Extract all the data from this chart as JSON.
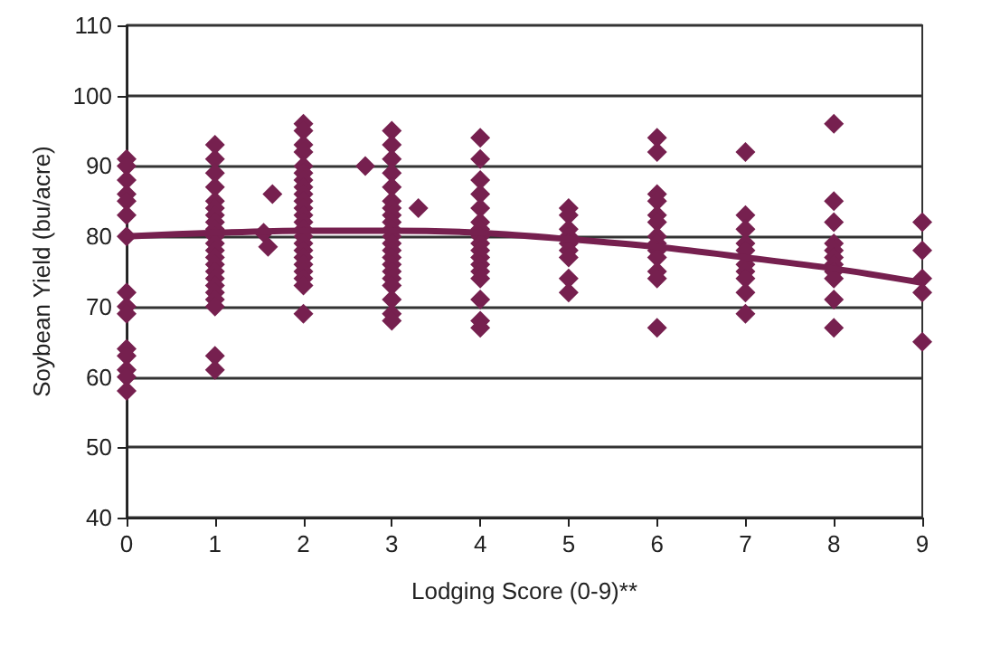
{
  "chart_data": {
    "type": "scatter",
    "xlabel": "Lodging Score (0-9)**",
    "ylabel": "Soybean Yield (bu/acre)",
    "xlim": [
      0,
      9
    ],
    "xticks": [
      0,
      1,
      2,
      3,
      4,
      5,
      6,
      7,
      8,
      9
    ],
    "ylim": [
      40,
      110
    ],
    "yticks": [
      40,
      50,
      60,
      70,
      80,
      90,
      100,
      110
    ],
    "grid": "y",
    "marker": "diamond",
    "series": [
      {
        "color": "#76204f",
        "x": [
          0,
          0,
          0,
          0,
          0,
          0,
          0,
          0,
          0,
          0,
          0,
          0,
          0,
          0,
          0,
          1,
          1,
          1,
          1,
          1,
          1,
          1,
          1,
          1,
          1,
          1,
          1,
          1,
          1,
          1,
          1,
          1,
          1,
          1,
          1,
          1,
          1,
          1.65,
          1.55,
          1.6,
          2,
          2,
          2,
          2,
          2,
          2,
          2,
          2,
          2,
          2,
          2,
          2,
          2,
          2,
          2,
          2,
          2,
          2,
          2,
          2,
          2,
          2,
          2,
          2.7,
          3,
          3,
          3,
          3,
          3,
          3,
          3,
          3,
          3,
          3,
          3,
          3,
          3,
          3,
          3,
          3,
          3,
          3,
          3,
          3,
          3,
          3.3,
          4,
          4,
          4,
          4,
          4,
          4,
          4,
          4,
          4,
          4,
          4,
          4,
          4,
          4,
          4,
          4,
          4,
          5,
          5,
          5,
          5,
          5,
          5,
          5,
          5,
          5,
          6,
          6,
          6,
          6,
          6,
          6,
          6,
          6,
          6,
          6,
          6,
          6,
          6,
          7,
          7,
          7,
          7,
          7,
          7,
          7,
          7,
          7,
          7,
          8,
          8,
          8,
          8,
          8,
          8,
          8,
          8,
          8,
          8,
          8,
          9,
          9,
          9,
          9,
          9
        ],
        "values": [
          91,
          90,
          88,
          86,
          85,
          83,
          80,
          72,
          70,
          69,
          64,
          63,
          61,
          60,
          58,
          93,
          91,
          89,
          87,
          85,
          84,
          83,
          82,
          81,
          80,
          79,
          78,
          77,
          76,
          75,
          74,
          73,
          72,
          71,
          70,
          63,
          61,
          86,
          80.5,
          78.5,
          96,
          95,
          93,
          92,
          90,
          89,
          88,
          87,
          86,
          85,
          84,
          83,
          82,
          81,
          80,
          79,
          78,
          77,
          76,
          75,
          74,
          73,
          69,
          90,
          95,
          93,
          91,
          89,
          87,
          85,
          84,
          83,
          82,
          81,
          80,
          79,
          78,
          77,
          76,
          75,
          74,
          73,
          71,
          69,
          68,
          84,
          94,
          91,
          88,
          86,
          84,
          82,
          81,
          80,
          79,
          78,
          77,
          76,
          75,
          74,
          71,
          68,
          67,
          84,
          83,
          81,
          80,
          79,
          78,
          77,
          74,
          72,
          94,
          92,
          86,
          85,
          83,
          82,
          80,
          79,
          78,
          77,
          75,
          74,
          67,
          92,
          83,
          81,
          79,
          78,
          76,
          75,
          74,
          72,
          69,
          96,
          85,
          82,
          79,
          78,
          77,
          76,
          75,
          74,
          71,
          67,
          82,
          78,
          74,
          72,
          65
        ]
      },
      {
        "type": "line",
        "color": "#76204f",
        "marker": "none",
        "x": [
          0,
          1,
          2,
          3,
          4,
          5,
          6,
          7,
          8,
          9
        ],
        "values": [
          80,
          80.5,
          80.8,
          80.8,
          80.5,
          79.6,
          78.5,
          77,
          75.4,
          73.4
        ]
      }
    ]
  }
}
